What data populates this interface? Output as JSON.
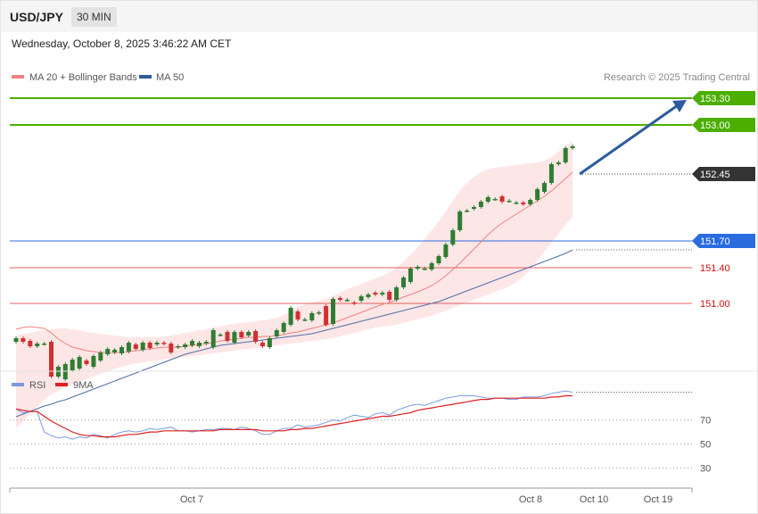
{
  "header": {
    "symbol": "USD/JPY",
    "interval": "30 MIN",
    "datetime": "Wednesday, October 8, 2025 3:46:22 AM CET"
  },
  "legend": {
    "ma20": "MA 20 + Bollinger Bands",
    "ma50": "MA 50",
    "credit": "Research © 2025 Trading Central",
    "rsi": "RSI",
    "rsi_ma": "9MA"
  },
  "colors": {
    "up": "#2e7d32",
    "down": "#d32f2f",
    "target_green": "#4caf00",
    "pivot_blue": "#2a6bdf",
    "support_red": "#e06060",
    "ma20": "#f08080",
    "ma50": "#5070a8",
    "arrow": "#2d5b9c",
    "rsi": "#7a9ae0",
    "rsi_ma": "#e02020"
  },
  "chart_data": [
    {
      "type": "candlestick",
      "ylim": [
        150.3,
        153.5
      ],
      "levels": [
        {
          "value": 153.3,
          "label": "153.30",
          "kind": "target"
        },
        {
          "value": 153.0,
          "label": "153.00",
          "kind": "target"
        },
        {
          "value": 152.45,
          "label": "152.45",
          "kind": "last"
        },
        {
          "value": 151.7,
          "label": "151.70",
          "kind": "pivot"
        },
        {
          "value": 151.4,
          "label": "151.40",
          "kind": "support"
        },
        {
          "value": 151.0,
          "label": "151.00",
          "kind": "support"
        }
      ],
      "candles": [
        [
          150.57,
          150.61
        ],
        [
          150.61,
          150.57
        ],
        [
          150.58,
          150.52
        ],
        [
          150.52,
          150.55
        ],
        [
          150.55,
          150.55
        ],
        [
          150.57,
          150.18
        ],
        [
          150.18,
          150.29
        ],
        [
          150.15,
          150.32
        ],
        [
          150.25,
          150.37
        ],
        [
          150.27,
          150.4
        ],
        [
          150.36,
          150.32
        ],
        [
          150.29,
          150.41
        ],
        [
          150.36,
          150.45
        ],
        [
          150.43,
          150.49
        ],
        [
          150.45,
          150.48
        ],
        [
          150.44,
          150.51
        ],
        [
          150.46,
          150.56
        ],
        [
          150.54,
          150.49
        ],
        [
          150.48,
          150.56
        ],
        [
          150.56,
          150.5
        ],
        [
          150.54,
          150.56
        ],
        [
          150.56,
          150.55
        ],
        [
          150.55,
          150.45
        ],
        [
          150.51,
          150.52
        ],
        [
          150.51,
          150.54
        ],
        [
          150.53,
          150.58
        ],
        [
          150.52,
          150.56
        ],
        [
          150.55,
          150.57
        ],
        [
          150.51,
          150.7
        ],
        [
          150.65,
          150.65
        ],
        [
          150.68,
          150.58
        ],
        [
          150.56,
          150.68
        ],
        [
          150.68,
          150.62
        ],
        [
          150.64,
          150.68
        ],
        [
          150.69,
          150.57
        ],
        [
          150.56,
          150.52
        ],
        [
          150.51,
          150.61
        ],
        [
          150.63,
          150.7
        ],
        [
          150.68,
          150.78
        ],
        [
          150.76,
          150.95
        ],
        [
          150.91,
          150.82
        ],
        [
          150.82,
          150.82
        ],
        [
          150.81,
          150.89
        ],
        [
          150.89,
          150.9
        ],
        [
          150.97,
          150.76
        ],
        [
          150.77,
          151.05
        ],
        [
          151.06,
          151.04
        ],
        [
          151.04,
          151.04
        ],
        [
          151.01,
          151.0
        ],
        [
          151.03,
          151.08
        ],
        [
          151.07,
          151.1
        ],
        [
          151.12,
          151.1
        ],
        [
          151.1,
          151.12
        ],
        [
          151.13,
          151.04
        ],
        [
          151.04,
          151.18
        ],
        [
          151.18,
          151.29
        ],
        [
          151.24,
          151.39
        ],
        [
          151.39,
          151.41
        ],
        [
          151.39,
          151.39
        ],
        [
          151.38,
          151.45
        ],
        [
          151.45,
          151.53
        ],
        [
          151.52,
          151.66
        ],
        [
          151.66,
          151.82
        ],
        [
          151.82,
          152.03
        ],
        [
          152.04,
          152.04
        ],
        [
          152.06,
          152.08
        ],
        [
          152.08,
          152.14
        ],
        [
          152.14,
          152.19
        ],
        [
          152.17,
          152.17
        ],
        [
          152.2,
          152.14
        ],
        [
          152.15,
          152.15
        ],
        [
          152.13,
          152.13
        ],
        [
          152.13,
          152.11
        ],
        [
          152.11,
          152.16
        ],
        [
          152.16,
          152.28
        ],
        [
          152.25,
          152.35
        ],
        [
          152.35,
          152.56
        ],
        [
          152.56,
          152.58
        ],
        [
          152.58,
          152.74
        ],
        [
          152.74,
          152.76
        ]
      ],
      "ma20": [
        150.71,
        150.73,
        150.74,
        150.73,
        150.72,
        150.67,
        150.6,
        150.55,
        150.51,
        150.49,
        150.47,
        150.46,
        150.45,
        150.45,
        150.45,
        150.45,
        150.46,
        150.47,
        150.48,
        150.49,
        150.5,
        150.51,
        150.51,
        150.51,
        150.52,
        150.53,
        150.54,
        150.55,
        150.56,
        150.58,
        150.59,
        150.6,
        150.61,
        150.62,
        150.62,
        150.63,
        150.63,
        150.64,
        150.65,
        150.67,
        150.68,
        150.7,
        150.72,
        150.74,
        150.76,
        150.78,
        150.81,
        150.84,
        150.87,
        150.9,
        150.93,
        150.96,
        150.99,
        151.01,
        151.04,
        151.07,
        151.1,
        151.13,
        151.16,
        151.2,
        151.25,
        151.31,
        151.38,
        151.45,
        151.53,
        151.61,
        151.69,
        151.77,
        151.84,
        151.9,
        151.95,
        152.0,
        152.05,
        152.1,
        152.15,
        152.2,
        152.26,
        152.33,
        152.4,
        152.47
      ],
      "ma50": [
        149.73,
        149.76,
        149.79,
        149.82,
        149.85,
        149.87,
        149.9,
        149.92,
        149.95,
        149.98,
        150.01,
        150.04,
        150.07,
        150.1,
        150.13,
        150.16,
        150.19,
        150.22,
        150.25,
        150.28,
        150.31,
        150.34,
        150.37,
        150.4,
        150.43,
        150.45,
        150.47,
        150.49,
        150.51,
        150.53,
        150.54,
        150.55,
        150.56,
        150.57,
        150.58,
        150.59,
        150.6,
        150.61,
        150.62,
        150.63,
        150.64,
        150.65,
        150.66,
        150.68,
        150.7,
        150.72,
        150.74,
        150.76,
        150.78,
        150.8,
        150.82,
        150.84,
        150.86,
        150.88,
        150.9,
        150.92,
        150.94,
        150.96,
        150.98,
        151.0,
        151.02,
        151.05,
        151.08,
        151.11,
        151.14,
        151.17,
        151.2,
        151.23,
        151.26,
        151.29,
        151.32,
        151.35,
        151.38,
        151.41,
        151.44,
        151.47,
        151.5,
        151.53,
        151.56,
        151.6
      ],
      "bb_upper": [
        150.64,
        150.66,
        150.67,
        150.69,
        150.7,
        150.71,
        150.72,
        150.72,
        150.71,
        150.7,
        150.68,
        150.67,
        150.66,
        150.65,
        150.64,
        150.63,
        150.62,
        150.62,
        150.62,
        150.62,
        150.62,
        150.63,
        150.64,
        150.65,
        150.67,
        150.68,
        150.7,
        150.71,
        150.73,
        150.74,
        150.76,
        150.77,
        150.78,
        150.79,
        150.8,
        150.81,
        150.82,
        150.84,
        150.87,
        150.92,
        150.96,
        150.99,
        151.01,
        151.03,
        151.05,
        151.08,
        151.12,
        151.16,
        151.19,
        151.22,
        151.25,
        151.28,
        151.31,
        151.35,
        151.4,
        151.47,
        151.55,
        151.63,
        151.72,
        151.82,
        151.92,
        152.03,
        152.15,
        152.26,
        152.35,
        152.42,
        152.47,
        152.5,
        152.52,
        152.53,
        152.54,
        152.55,
        152.56,
        152.57,
        152.58,
        152.6,
        152.64,
        152.7,
        152.76,
        152.82
      ],
      "bb_lower": [
        149.6,
        149.68,
        149.76,
        149.84,
        149.92,
        149.98,
        150.02,
        150.06,
        150.09,
        150.12,
        150.15,
        150.18,
        150.21,
        150.24,
        150.27,
        150.29,
        150.31,
        150.33,
        150.34,
        150.35,
        150.36,
        150.37,
        150.38,
        150.39,
        150.4,
        150.41,
        150.42,
        150.43,
        150.44,
        150.45,
        150.46,
        150.47,
        150.48,
        150.49,
        150.5,
        150.51,
        150.52,
        150.53,
        150.54,
        150.55,
        150.56,
        150.57,
        150.58,
        150.59,
        150.6,
        150.61,
        150.63,
        150.65,
        150.67,
        150.69,
        150.71,
        150.73,
        150.74,
        150.75,
        150.76,
        150.78,
        150.8,
        150.82,
        150.84,
        150.86,
        150.89,
        150.92,
        150.95,
        150.98,
        151.01,
        151.04,
        151.07,
        151.1,
        151.13,
        151.16,
        151.19,
        151.24,
        151.3,
        151.38,
        151.48,
        151.58,
        151.68,
        151.78,
        151.88,
        151.98
      ],
      "forecast": {
        "from": 152.45,
        "to": 153.3
      }
    },
    {
      "type": "line",
      "name": "RSI",
      "ylim": [
        15,
        100
      ],
      "y_ticks": [
        30,
        50,
        70
      ],
      "rsi": [
        79,
        76,
        77,
        77,
        60,
        57,
        55,
        56,
        54,
        56,
        55,
        58,
        57,
        55,
        58,
        60,
        61,
        60,
        61,
        63,
        62,
        63,
        64,
        61,
        61,
        60,
        61,
        62,
        62,
        63,
        63,
        62,
        64,
        63,
        61,
        58,
        58,
        61,
        63,
        63,
        66,
        64,
        65,
        66,
        68,
        70,
        69,
        72,
        74,
        73,
        72,
        75,
        76,
        74,
        78,
        80,
        82,
        83,
        82,
        84,
        86,
        88,
        89,
        90,
        90,
        90,
        89,
        88,
        88,
        88,
        87,
        87,
        89,
        89,
        89,
        90,
        92,
        93,
        94,
        93
      ],
      "rsi_ma": [
        79,
        78,
        77,
        77,
        73,
        69,
        66,
        63,
        60,
        58,
        57,
        57,
        56,
        56,
        56,
        57,
        58,
        58,
        59,
        60,
        60,
        61,
        61,
        61,
        61,
        61,
        61,
        61,
        61,
        62,
        62,
        62,
        62,
        62,
        62,
        61,
        61,
        61,
        61,
        62,
        62,
        63,
        63,
        64,
        65,
        66,
        67,
        68,
        69,
        70,
        71,
        72,
        73,
        73,
        74,
        75,
        76,
        78,
        79,
        80,
        81,
        82,
        83,
        84,
        85,
        86,
        87,
        87,
        88,
        88,
        88,
        88,
        88,
        88,
        88,
        88,
        89,
        89,
        90,
        90
      ],
      "x_ticks": [
        "Oct 7",
        "Oct 8",
        "Oct 10",
        "Oct 19"
      ]
    }
  ]
}
